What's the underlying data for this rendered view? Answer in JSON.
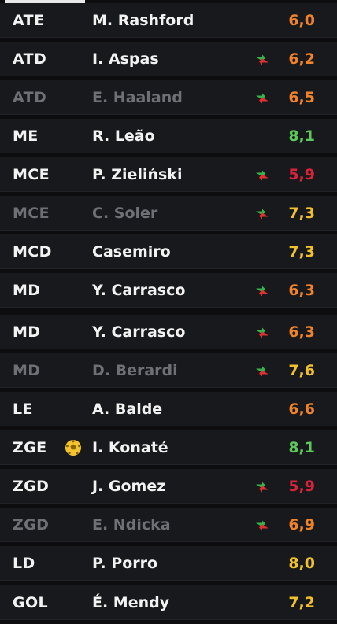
{
  "colors": {
    "orange": "#f0822a",
    "green": "#5fc85a",
    "red": "#d9233a",
    "yellow": "#f2c02a",
    "swap_up": "#37b24d",
    "swap_down": "#e03131",
    "ball": "#f4c430"
  },
  "lineup": [
    {
      "position": "ATE",
      "name": "M. Rashford",
      "rating": "6,0",
      "rating_color": "#f0822a",
      "dim": false,
      "swap": false,
      "ball": false
    },
    {
      "position": "ATD",
      "name": "I. Aspas",
      "rating": "6,2",
      "rating_color": "#f0822a",
      "dim": false,
      "swap": true,
      "ball": false
    },
    {
      "position": "ATD",
      "name": "E. Haaland",
      "rating": "6,5",
      "rating_color": "#f0822a",
      "dim": true,
      "swap": true,
      "ball": false
    },
    {
      "position": "ME",
      "name": "R. Leão",
      "rating": "8,1",
      "rating_color": "#5fc85a",
      "dim": false,
      "swap": false,
      "ball": false
    },
    {
      "position": "MCE",
      "name": "P. Zieliński",
      "rating": "5,9",
      "rating_color": "#d9233a",
      "dim": false,
      "swap": true,
      "ball": false
    },
    {
      "position": "MCE",
      "name": "C. Soler",
      "rating": "7,3",
      "rating_color": "#f2c02a",
      "dim": true,
      "swap": true,
      "ball": false
    },
    {
      "position": "MCD",
      "name": "Casemiro",
      "rating": "7,3",
      "rating_color": "#f2c02a",
      "dim": false,
      "swap": false,
      "ball": false
    },
    {
      "position": "MD",
      "name": "Y. Carrasco",
      "rating": "6,3",
      "rating_color": "#f0822a",
      "dim": false,
      "swap": true,
      "ball": false
    },
    {
      "position": "MD",
      "name": "Y. Carrasco",
      "rating": "6,3",
      "rating_color": "#f0822a",
      "dim": false,
      "swap": true,
      "ball": false
    },
    {
      "position": "MD",
      "name": "D. Berardi",
      "rating": "7,6",
      "rating_color": "#f2c02a",
      "dim": true,
      "swap": true,
      "ball": false
    },
    {
      "position": "LE",
      "name": "A. Balde",
      "rating": "6,6",
      "rating_color": "#f0822a",
      "dim": false,
      "swap": false,
      "ball": false
    },
    {
      "position": "ZGE",
      "name": "I. Konaté",
      "rating": "8,1",
      "rating_color": "#5fc85a",
      "dim": false,
      "swap": false,
      "ball": true
    },
    {
      "position": "ZGD",
      "name": "J. Gomez",
      "rating": "5,9",
      "rating_color": "#d9233a",
      "dim": false,
      "swap": true,
      "ball": false
    },
    {
      "position": "ZGD",
      "name": "E. Ndicka",
      "rating": "6,9",
      "rating_color": "#f0822a",
      "dim": true,
      "swap": true,
      "ball": false
    },
    {
      "position": "LD",
      "name": "P. Porro",
      "rating": "8,0",
      "rating_color": "#f2c02a",
      "dim": false,
      "swap": false,
      "ball": false
    },
    {
      "position": "GOL",
      "name": "É. Mendy",
      "rating": "7,2",
      "rating_color": "#f2c02a",
      "dim": false,
      "swap": false,
      "ball": false
    }
  ]
}
